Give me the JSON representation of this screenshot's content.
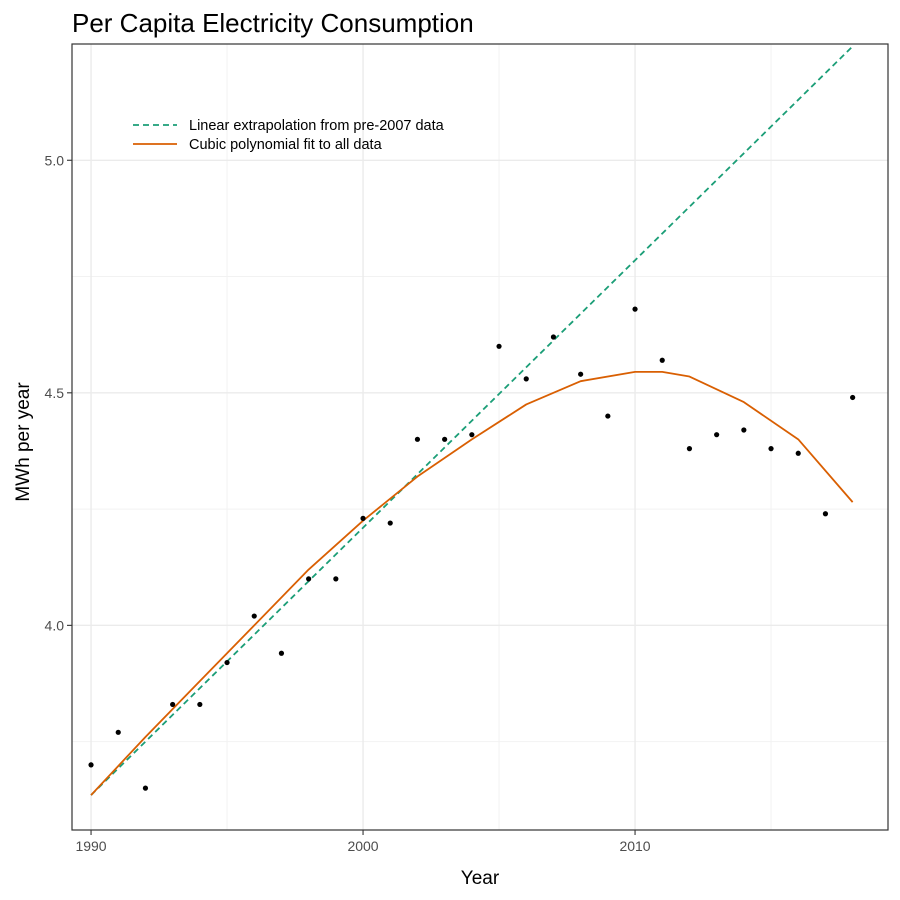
{
  "chart_data": {
    "type": "line",
    "title": "Per Capita Electricity Consumption",
    "xlabel": "Year",
    "ylabel": "MWh per year",
    "xlim": [
      1989.3,
      2019.3
    ],
    "ylim": [
      3.56,
      5.25
    ],
    "x_ticks": [
      1990,
      2000,
      2010
    ],
    "x_tick_labels": [
      "1990",
      "2000",
      "2010"
    ],
    "y_ticks": [
      4.0,
      4.5,
      5.0
    ],
    "y_tick_labels": [
      "4.0",
      "4.5",
      "5.0"
    ],
    "grid": true,
    "legend_position": "top-left",
    "scatter_series": {
      "x": [
        1990,
        1991,
        1992,
        1993,
        1994,
        1995,
        1996,
        1997,
        1998,
        1999,
        2000,
        2001,
        2002,
        2003,
        2004,
        2005,
        2006,
        2007,
        2008,
        2009,
        2010,
        2011,
        2012,
        2013,
        2014,
        2015,
        2016,
        2017,
        2018
      ],
      "y": [
        3.7,
        3.77,
        3.65,
        3.83,
        3.83,
        3.92,
        4.02,
        3.94,
        4.1,
        4.1,
        4.23,
        4.22,
        4.4,
        4.4,
        4.41,
        4.6,
        4.53,
        4.62,
        4.54,
        4.45,
        4.68,
        4.57,
        4.38,
        4.41,
        4.42,
        4.38,
        4.37,
        4.24,
        4.49
      ],
      "color": "#000000"
    },
    "series": [
      {
        "name": "Linear extrapolation from pre-2007 data",
        "style": "dashed",
        "color": "#1b9e77",
        "x": [
          1990,
          2018
        ],
        "y": [
          3.635,
          5.245
        ]
      },
      {
        "name": "Cubic polynomial fit to all data",
        "style": "solid",
        "color": "#d95f02",
        "x": [
          1990,
          1992,
          1994,
          1996,
          1998,
          2000,
          2002,
          2004,
          2006,
          2008,
          2010,
          2011,
          2012,
          2014,
          2016,
          2018
        ],
        "y": [
          3.635,
          3.76,
          3.88,
          4.0,
          4.12,
          4.225,
          4.32,
          4.4,
          4.475,
          4.525,
          4.545,
          4.545,
          4.535,
          4.48,
          4.4,
          4.265
        ]
      }
    ]
  },
  "style": {
    "background": "#ffffff",
    "panel_border": "#333333",
    "grid_major": "#ebebeb",
    "grid_minor": "#f2f2f2",
    "tick_color": "#333333"
  }
}
